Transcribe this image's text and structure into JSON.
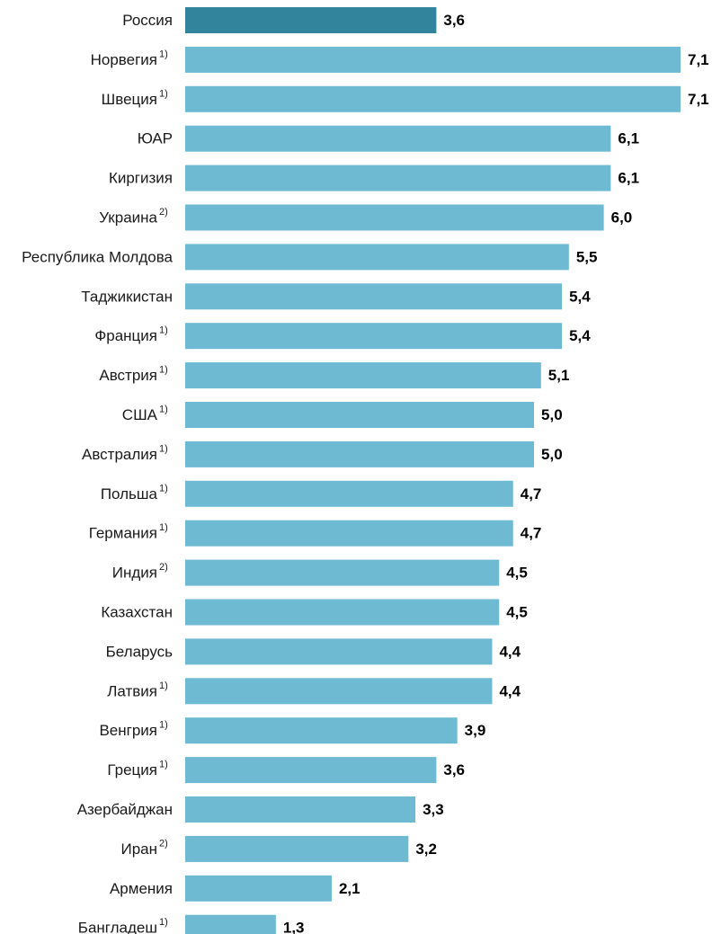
{
  "chart_data": {
    "type": "bar",
    "orientation": "horizontal",
    "categories": [
      {
        "label": "Россия",
        "note": ""
      },
      {
        "label": "Норвегия",
        "note": "1)"
      },
      {
        "label": "Швеция",
        "note": "1)"
      },
      {
        "label": "ЮАР",
        "note": ""
      },
      {
        "label": "Киргизия",
        "note": ""
      },
      {
        "label": "Украина",
        "note": "2)"
      },
      {
        "label": "Республика Молдова",
        "note": ""
      },
      {
        "label": "Таджикистан",
        "note": ""
      },
      {
        "label": "Франция",
        "note": "1)"
      },
      {
        "label": "Австрия",
        "note": "1)"
      },
      {
        "label": "США",
        "note": "1)"
      },
      {
        "label": "Австралия",
        "note": "1)"
      },
      {
        "label": "Польша",
        "note": "1)"
      },
      {
        "label": "Германия",
        "note": "1)"
      },
      {
        "label": "Индия",
        "note": "2)"
      },
      {
        "label": "Казахстан",
        "note": ""
      },
      {
        "label": "Беларусь",
        "note": ""
      },
      {
        "label": "Латвия",
        "note": "1)"
      },
      {
        "label": "Венгрия",
        "note": "1)"
      },
      {
        "label": "Греция",
        "note": "1)"
      },
      {
        "label": "Азербайджан",
        "note": ""
      },
      {
        "label": "Иран",
        "note": "2)"
      },
      {
        "label": "Армения",
        "note": ""
      },
      {
        "label": "Бангладеш",
        "note": "1)"
      }
    ],
    "values": [
      3.6,
      7.1,
      7.1,
      6.1,
      6.1,
      6.0,
      5.5,
      5.4,
      5.4,
      5.1,
      5.0,
      5.0,
      4.7,
      4.7,
      4.5,
      4.5,
      4.4,
      4.4,
      3.9,
      3.6,
      3.3,
      3.2,
      2.1,
      1.3
    ],
    "value_labels": [
      "3,6",
      "7,1",
      "7,1",
      "6,1",
      "6,1",
      "6,0",
      "5,5",
      "5,4",
      "5,4",
      "5,1",
      "5,0",
      "5,0",
      "4,7",
      "4,7",
      "4,5",
      "4,5",
      "4,4",
      "4,4",
      "3,9",
      "3,6",
      "3,3",
      "3,2",
      "2,1",
      "1,3"
    ],
    "highlight_index": 0,
    "xlim": [
      0,
      7.1
    ],
    "grid": false,
    "colors": {
      "highlight": "#31849b",
      "bar": "#6dbad2"
    }
  }
}
